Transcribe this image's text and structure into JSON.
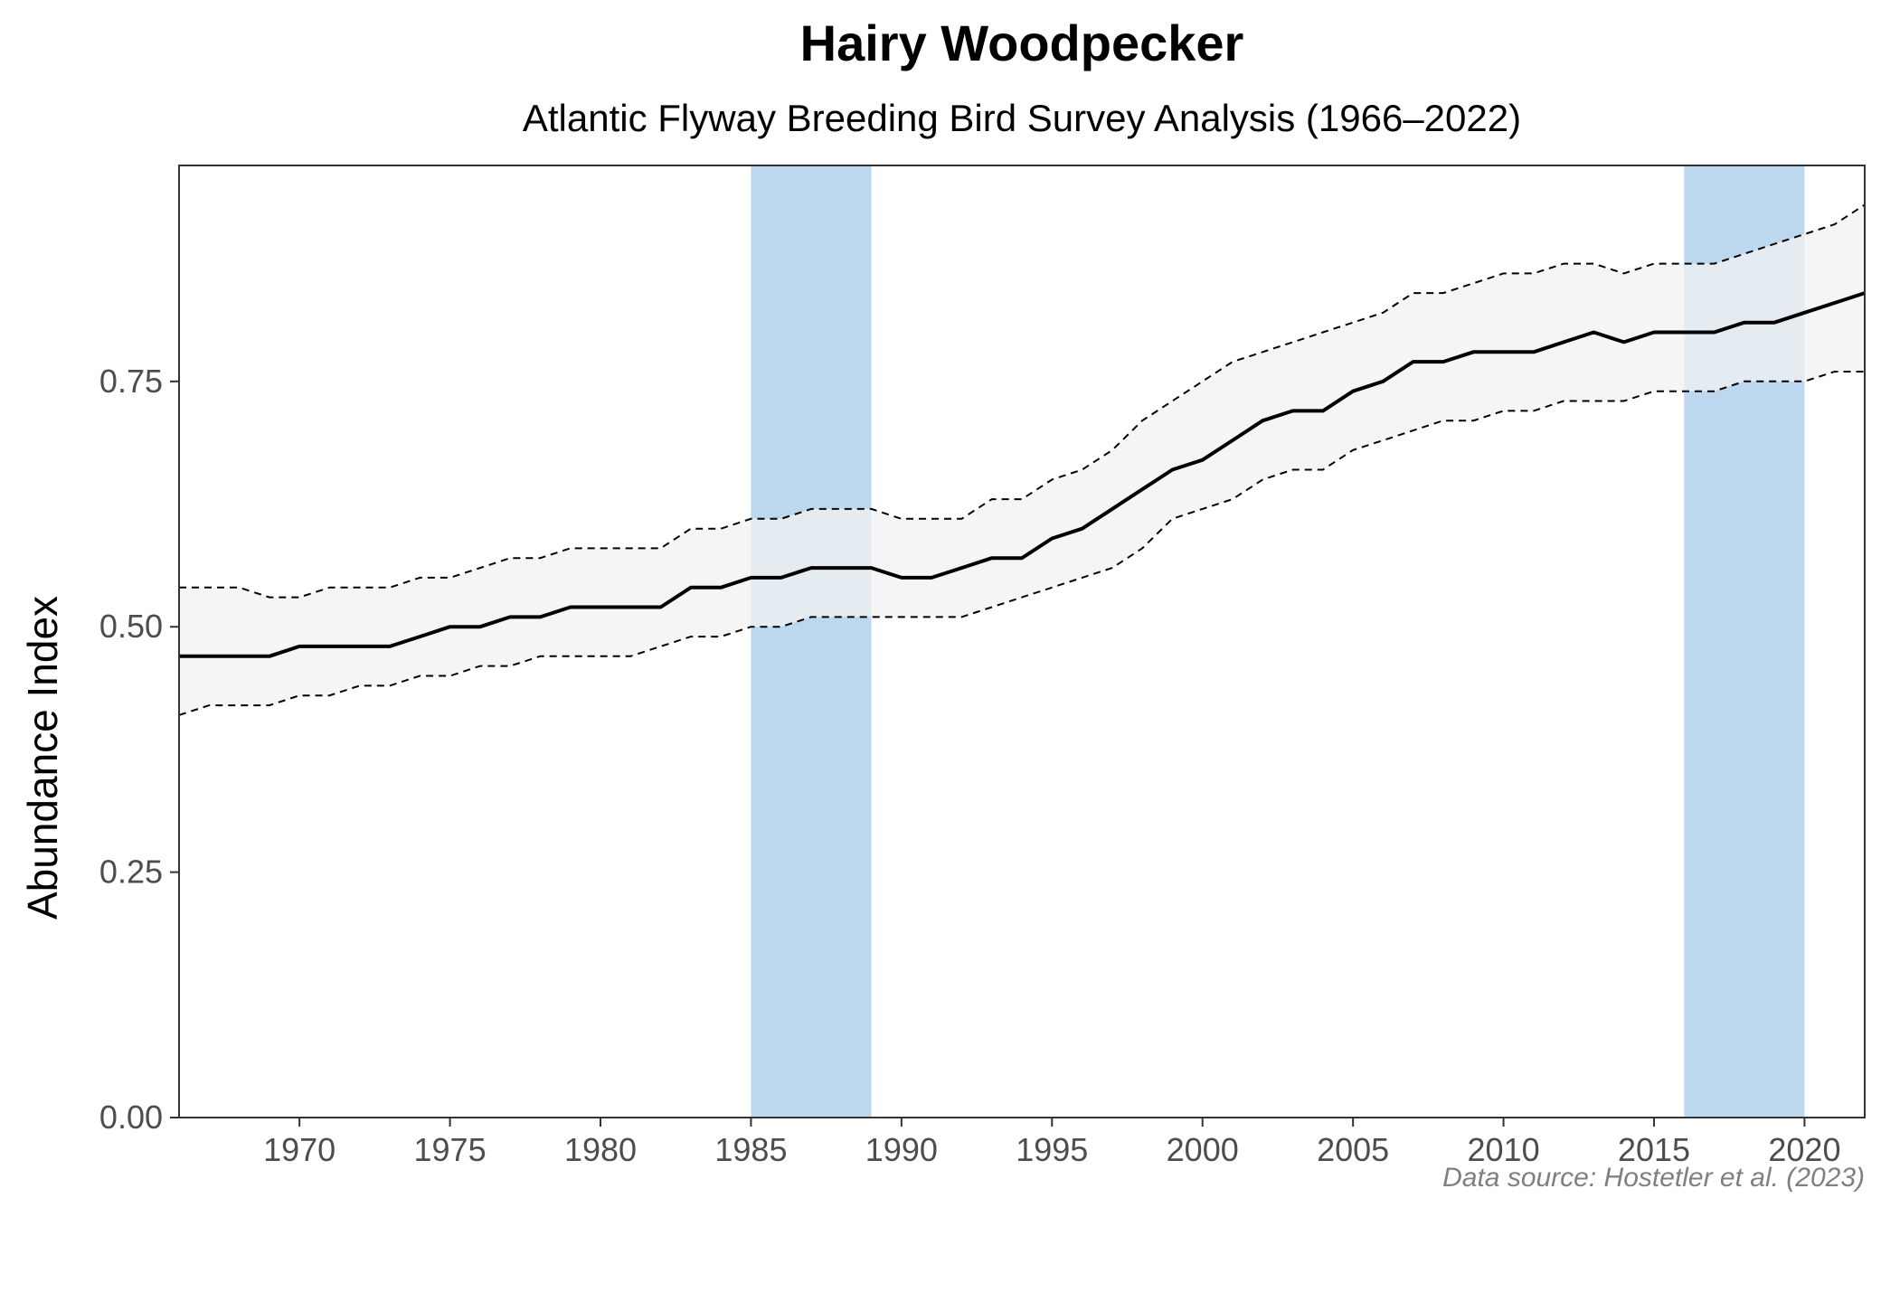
{
  "chart_data": {
    "type": "line",
    "title": "Hairy Woodpecker",
    "subtitle": "Atlantic Flyway Breeding Bird Survey Analysis (1966–2022)",
    "xlabel": "",
    "ylabel": "Abundance Index",
    "caption": "Data source: Hostetler et al. (2023)",
    "xlim": [
      1966,
      2022
    ],
    "ylim": [
      0,
      0.97
    ],
    "x_ticks": [
      "1970",
      "1975",
      "1980",
      "1985",
      "1990",
      "1995",
      "2000",
      "2005",
      "2010",
      "2015",
      "2020"
    ],
    "y_ticks": [
      "0.00",
      "0.25",
      "0.50",
      "0.75"
    ],
    "grid": false,
    "legend": "none",
    "highlight_periods": [
      {
        "start": 1985,
        "end": 1989,
        "color": "#bdd7ee"
      },
      {
        "start": 2016,
        "end": 2020,
        "color": "#bdd7ee"
      }
    ],
    "colors": {
      "trend": "#000000",
      "band": "#f2f2f2",
      "highlight": "#bdd7ee"
    },
    "x": [
      1966,
      1967,
      1968,
      1969,
      1970,
      1971,
      1972,
      1973,
      1974,
      1975,
      1976,
      1977,
      1978,
      1979,
      1980,
      1981,
      1982,
      1983,
      1984,
      1985,
      1986,
      1987,
      1988,
      1989,
      1990,
      1991,
      1992,
      1993,
      1994,
      1995,
      1996,
      1997,
      1998,
      1999,
      2000,
      2001,
      2002,
      2003,
      2004,
      2005,
      2006,
      2007,
      2008,
      2009,
      2010,
      2011,
      2012,
      2013,
      2014,
      2015,
      2016,
      2017,
      2018,
      2019,
      2020,
      2021,
      2022
    ],
    "series": [
      {
        "role": "index",
        "values": [
          0.47,
          0.47,
          0.47,
          0.47,
          0.48,
          0.48,
          0.48,
          0.48,
          0.49,
          0.5,
          0.5,
          0.51,
          0.51,
          0.52,
          0.52,
          0.52,
          0.52,
          0.54,
          0.54,
          0.55,
          0.55,
          0.56,
          0.56,
          0.56,
          0.55,
          0.55,
          0.56,
          0.57,
          0.57,
          0.59,
          0.6,
          0.62,
          0.64,
          0.66,
          0.67,
          0.69,
          0.71,
          0.72,
          0.72,
          0.74,
          0.75,
          0.77,
          0.77,
          0.78,
          0.78,
          0.78,
          0.79,
          0.8,
          0.79,
          0.8,
          0.8,
          0.8,
          0.81,
          0.81,
          0.82,
          0.83,
          0.84
        ]
      },
      {
        "role": "lower",
        "values": [
          0.41,
          0.42,
          0.42,
          0.42,
          0.43,
          0.43,
          0.44,
          0.44,
          0.45,
          0.45,
          0.46,
          0.46,
          0.47,
          0.47,
          0.47,
          0.47,
          0.48,
          0.49,
          0.49,
          0.5,
          0.5,
          0.51,
          0.51,
          0.51,
          0.51,
          0.51,
          0.51,
          0.52,
          0.53,
          0.54,
          0.55,
          0.56,
          0.58,
          0.61,
          0.62,
          0.63,
          0.65,
          0.66,
          0.66,
          0.68,
          0.69,
          0.7,
          0.71,
          0.71,
          0.72,
          0.72,
          0.73,
          0.73,
          0.73,
          0.74,
          0.74,
          0.74,
          0.75,
          0.75,
          0.75,
          0.76,
          0.76
        ]
      },
      {
        "role": "upper",
        "values": [
          0.54,
          0.54,
          0.54,
          0.53,
          0.53,
          0.54,
          0.54,
          0.54,
          0.55,
          0.55,
          0.56,
          0.57,
          0.57,
          0.58,
          0.58,
          0.58,
          0.58,
          0.6,
          0.6,
          0.61,
          0.61,
          0.62,
          0.62,
          0.62,
          0.61,
          0.61,
          0.61,
          0.63,
          0.63,
          0.65,
          0.66,
          0.68,
          0.71,
          0.73,
          0.75,
          0.77,
          0.78,
          0.79,
          0.8,
          0.81,
          0.82,
          0.84,
          0.84,
          0.85,
          0.86,
          0.86,
          0.87,
          0.87,
          0.86,
          0.87,
          0.87,
          0.87,
          0.88,
          0.89,
          0.9,
          0.91,
          0.93
        ]
      }
    ]
  }
}
